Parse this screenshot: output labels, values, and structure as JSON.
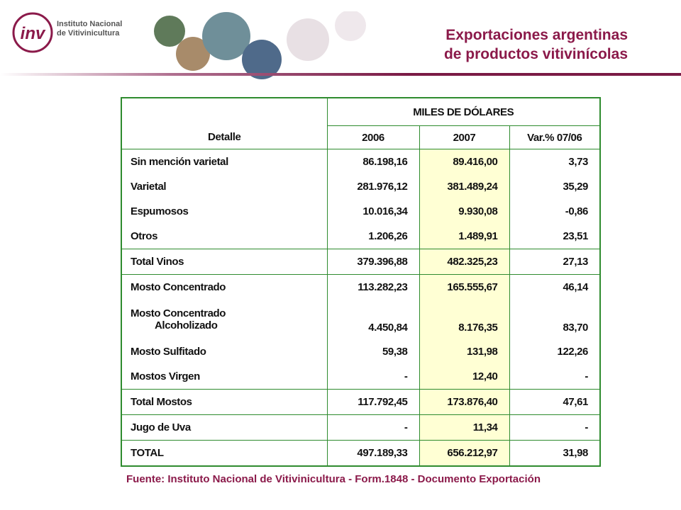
{
  "header": {
    "logo_mark": "inv",
    "logo_text": [
      "Instituto Nacional",
      "de Vitivinicultura"
    ],
    "title": [
      "Exportaciones argentinas",
      "de productos vitivinícolas"
    ]
  },
  "table": {
    "columns": {
      "detail": "Detalle",
      "group": "MILES DE DÓLARES",
      "years": [
        "2006",
        "2007",
        "Var.% 07/06"
      ]
    },
    "rows": [
      [
        [
          "Sin mención varietal"
        ],
        "86.198,16",
        "89.416,00",
        "3,73"
      ],
      [
        [
          "Varietal"
        ],
        "281.976,12",
        "381.489,24",
        "35,29"
      ],
      [
        [
          "Espumosos"
        ],
        "10.016,34",
        "9.930,08",
        "-0,86"
      ],
      [
        [
          "Otros"
        ],
        "1.206,26",
        "1.489,91",
        "23,51"
      ],
      [
        [
          "Total Vinos"
        ],
        "379.396,88",
        "482.325,23",
        "27,13"
      ],
      [
        [
          "Mosto Concentrado"
        ],
        "113.282,23",
        "165.555,67",
        "46,14"
      ],
      [
        [
          "Mosto Concentrado",
          "Alcoholizado"
        ],
        "4.450,84",
        "8.176,35",
        "83,70"
      ],
      [
        [
          "Mosto Sulfitado"
        ],
        "59,38",
        "131,98",
        "122,26"
      ],
      [
        [
          "Mostos Virgen"
        ],
        "-",
        "12,40",
        "-"
      ],
      [
        [
          "Total Mostos"
        ],
        "117.792,45",
        "173.876,40",
        "47,61"
      ],
      [
        [
          "Jugo de Uva"
        ],
        "-",
        "11,34",
        "-"
      ],
      [
        [
          "TOTAL"
        ],
        "497.189,33",
        "656.212,97",
        "31,98"
      ]
    ]
  },
  "footer": {
    "source": "Fuente:  Instituto Nacional de Vitivinicultura - Form.1848 - Documento Exportación"
  }
}
